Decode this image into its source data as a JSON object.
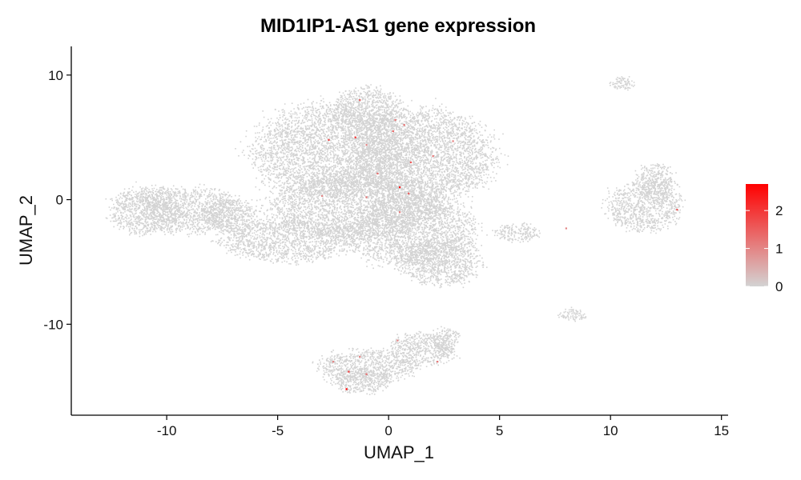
{
  "chart_data": {
    "type": "scatter",
    "title": "MID1IP1-AS1 gene expression",
    "xlabel": "UMAP_1",
    "ylabel": "UMAP_2",
    "xlim": [
      -14.3,
      15.3
    ],
    "ylim": [
      -17.3,
      12.3
    ],
    "xticks": [
      -10,
      -5,
      0,
      5,
      10,
      15
    ],
    "yticks": [
      -10,
      0,
      10
    ],
    "xtick_labels": [
      "-10",
      "-5",
      "0",
      "5",
      "10",
      "15"
    ],
    "ytick_labels": [
      "-10",
      "0",
      "10"
    ],
    "grid": false,
    "legend": {
      "placement": "right",
      "type": "colorbar",
      "ticks": [
        0,
        1,
        2
      ],
      "tick_labels": [
        "0",
        "1",
        "2"
      ],
      "range": [
        0,
        2.7
      ],
      "colors": [
        "#d3d3d3",
        "#ff0000"
      ]
    },
    "base_color": "#d3d3d3",
    "cell_clusters": [
      {
        "cx": -2.5,
        "cy": 4.0,
        "rx": 3.6,
        "ry": 3.6
      },
      {
        "cx": 1.5,
        "cy": 3.5,
        "rx": 3.2,
        "ry": 3.7
      },
      {
        "cx": -1.0,
        "cy": 7.3,
        "rx": 1.6,
        "ry": 1.7
      },
      {
        "cx": -1.5,
        "cy": -0.5,
        "rx": 4.0,
        "ry": 2.6
      },
      {
        "cx": 1.0,
        "cy": -2.5,
        "rx": 2.8,
        "ry": 2.8
      },
      {
        "cx": -4.5,
        "cy": -3.2,
        "rx": 3.0,
        "ry": 1.7
      },
      {
        "cx": 2.3,
        "cy": -5.0,
        "rx": 1.8,
        "ry": 1.8
      },
      {
        "cx": -11.0,
        "cy": -0.8,
        "rx": 1.6,
        "ry": 1.9
      },
      {
        "cx": -9.0,
        "cy": -0.8,
        "rx": 2.4,
        "ry": 1.8
      },
      {
        "cx": -7.2,
        "cy": -1.2,
        "rx": 1.2,
        "ry": 1.3
      },
      {
        "cx": 11.5,
        "cy": -0.5,
        "rx": 1.6,
        "ry": 2.0
      },
      {
        "cx": 12.0,
        "cy": 1.5,
        "rx": 0.9,
        "ry": 1.4
      },
      {
        "cx": 10.5,
        "cy": 9.4,
        "rx": 0.6,
        "ry": 0.5
      },
      {
        "cx": 8.2,
        "cy": -9.2,
        "rx": 0.6,
        "ry": 0.5
      },
      {
        "cx": 5.8,
        "cy": -2.6,
        "rx": 1.0,
        "ry": 0.7
      },
      {
        "cx": -1.0,
        "cy": -13.3,
        "rx": 2.2,
        "ry": 1.3
      },
      {
        "cx": -1.2,
        "cy": -14.5,
        "rx": 1.3,
        "ry": 1.0
      },
      {
        "cx": 1.5,
        "cy": -12.0,
        "rx": 1.5,
        "ry": 1.3
      },
      {
        "cx": 2.5,
        "cy": -11.2,
        "rx": 0.6,
        "ry": 1.0
      }
    ],
    "expressing_cells": [
      {
        "x": -1.3,
        "y": 8.0,
        "value": 1.5
      },
      {
        "x": 0.3,
        "y": 6.4,
        "value": 1.2
      },
      {
        "x": 0.7,
        "y": 6.0,
        "value": 1.3
      },
      {
        "x": -1.5,
        "y": 5.0,
        "value": 2.1
      },
      {
        "x": -2.7,
        "y": 4.8,
        "value": 1.8
      },
      {
        "x": -1.0,
        "y": 4.4,
        "value": 1.0
      },
      {
        "x": 0.2,
        "y": 5.5,
        "value": 1.4
      },
      {
        "x": 2.9,
        "y": 4.7,
        "value": 1.1
      },
      {
        "x": 1.0,
        "y": 3.0,
        "value": 1.6
      },
      {
        "x": -0.5,
        "y": 2.1,
        "value": 1.3
      },
      {
        "x": 0.5,
        "y": 1.0,
        "value": 2.4
      },
      {
        "x": 0.9,
        "y": 0.5,
        "value": 1.5
      },
      {
        "x": -1.0,
        "y": 0.2,
        "value": 1.2
      },
      {
        "x": 0.5,
        "y": -1.0,
        "value": 1.1
      },
      {
        "x": -3.0,
        "y": 0.3,
        "value": 1.0
      },
      {
        "x": 2.0,
        "y": 3.5,
        "value": 1.2
      },
      {
        "x": 13.0,
        "y": -0.8,
        "value": 1.6
      },
      {
        "x": 8.0,
        "y": -2.3,
        "value": 1.0
      },
      {
        "x": -1.8,
        "y": -13.8,
        "value": 1.9
      },
      {
        "x": -1.9,
        "y": -15.2,
        "value": 2.7
      },
      {
        "x": -1.0,
        "y": -14.0,
        "value": 1.3
      },
      {
        "x": -1.3,
        "y": -12.6,
        "value": 1.1
      },
      {
        "x": 2.2,
        "y": -13.0,
        "value": 1.2
      },
      {
        "x": -2.5,
        "y": -13.0,
        "value": 1.0
      },
      {
        "x": 0.4,
        "y": -11.3,
        "value": 1.0
      }
    ]
  }
}
